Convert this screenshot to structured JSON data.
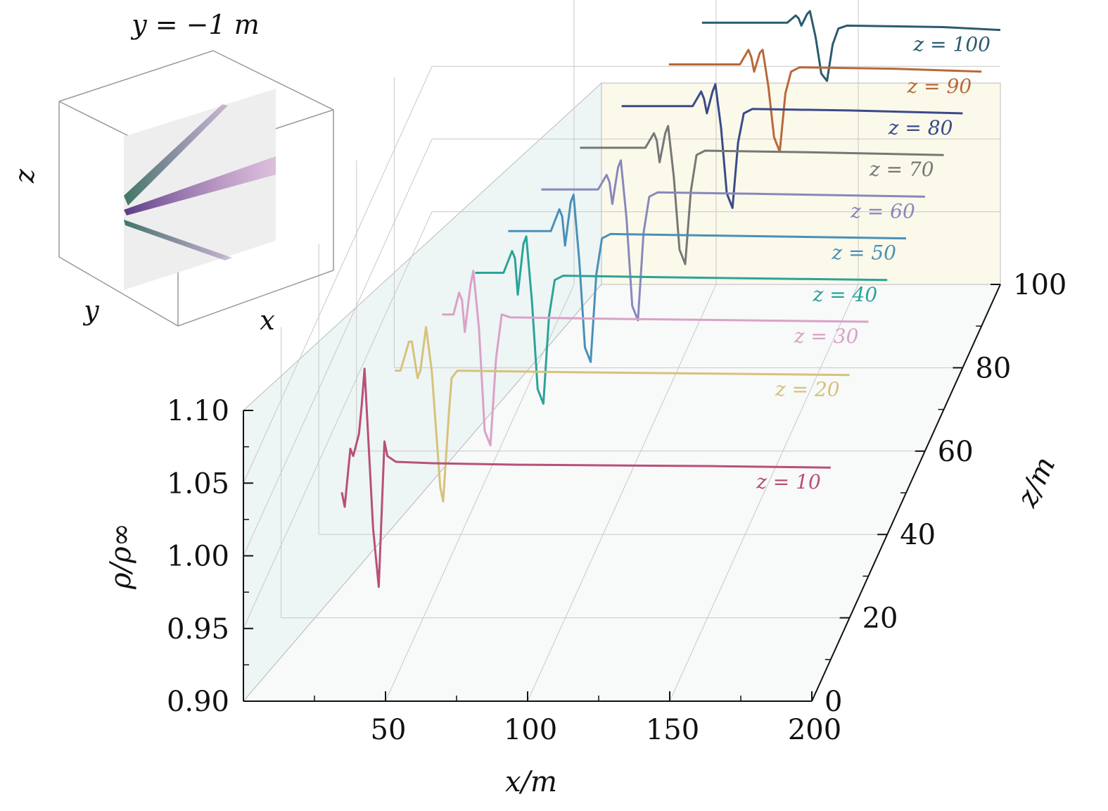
{
  "chart_data": {
    "type": "line",
    "xlabel": "x/m",
    "ylabel": "ρ/ρ∞",
    "zlabel": "z/m",
    "xlim": [
      0,
      200
    ],
    "ylim": [
      0.9,
      1.1
    ],
    "zlim": [
      0,
      100
    ],
    "x_ticks": [
      "50",
      "100",
      "150",
      "200"
    ],
    "y_ticks": [
      "0.90",
      "0.95",
      "1.00",
      "1.05",
      "1.10"
    ],
    "z_ticks": [
      "0",
      "20",
      "40",
      "60",
      "80",
      "100"
    ],
    "series": [
      {
        "name": "z = 10",
        "z": 10,
        "color": "#b8507a",
        "points": [
          [
            28,
            1.015
          ],
          [
            29,
            1.005
          ],
          [
            31,
            1.045
          ],
          [
            32,
            1.04
          ],
          [
            34,
            1.055
          ],
          [
            35,
            1.075
          ],
          [
            36,
            1.1
          ],
          [
            39,
            0.99
          ],
          [
            41,
            0.95
          ],
          [
            43,
            1.05
          ],
          [
            44,
            1.04
          ],
          [
            47,
            1.036
          ],
          [
            60,
            1.035
          ],
          [
            90,
            1.034
          ],
          [
            160,
            1.033
          ],
          [
            200,
            1.032
          ]
        ]
      },
      {
        "name": "z = 20",
        "z": 20,
        "color": "#d6c27a",
        "points": [
          [
            40,
            1.07
          ],
          [
            42,
            1.07
          ],
          [
            45,
            1.09
          ],
          [
            46,
            1.09
          ],
          [
            48,
            1.065
          ],
          [
            49,
            1.07
          ],
          [
            51,
            1.1
          ],
          [
            53,
            1.07
          ],
          [
            56,
            0.99
          ],
          [
            57,
            0.98
          ],
          [
            59,
            1.04
          ],
          [
            60,
            1.065
          ],
          [
            62,
            1.07
          ],
          [
            100,
            1.069
          ],
          [
            200,
            1.067
          ]
        ]
      },
      {
        "name": "z = 30",
        "z": 30,
        "color": "#d9a2c6",
        "points": [
          [
            50,
            1.08
          ],
          [
            54,
            1.08
          ],
          [
            56,
            1.095
          ],
          [
            57,
            1.09
          ],
          [
            58,
            1.068
          ],
          [
            60,
            1.1
          ],
          [
            61,
            1.11
          ],
          [
            63,
            1.07
          ],
          [
            65,
            1.0
          ],
          [
            67,
            0.99
          ],
          [
            69,
            1.05
          ],
          [
            71,
            1.08
          ],
          [
            74,
            1.078
          ],
          [
            110,
            1.077
          ],
          [
            200,
            1.075
          ]
        ]
      },
      {
        "name": "z = 40",
        "z": 40,
        "color": "#2ba39a",
        "points": [
          [
            55,
            1.08
          ],
          [
            65,
            1.08
          ],
          [
            68,
            1.095
          ],
          [
            69,
            1.09
          ],
          [
            70,
            1.065
          ],
          [
            72,
            1.1
          ],
          [
            73,
            1.105
          ],
          [
            75,
            1.06
          ],
          [
            77,
            1.0
          ],
          [
            79,
            0.99
          ],
          [
            81,
            1.05
          ],
          [
            83,
            1.075
          ],
          [
            86,
            1.078
          ],
          [
            120,
            1.077
          ],
          [
            200,
            1.075
          ]
        ]
      },
      {
        "name": "z = 50",
        "z": 50,
        "color": "#4a90b8",
        "points": [
          [
            60,
            1.08
          ],
          [
            75,
            1.08
          ],
          [
            78,
            1.095
          ],
          [
            79,
            1.09
          ],
          [
            80,
            1.07
          ],
          [
            82,
            1.1
          ],
          [
            83,
            1.105
          ],
          [
            85,
            1.06
          ],
          [
            87,
            1.0
          ],
          [
            89,
            0.99
          ],
          [
            91,
            1.05
          ],
          [
            93,
            1.075
          ],
          [
            96,
            1.078
          ],
          [
            130,
            1.077
          ],
          [
            200,
            1.075
          ]
        ]
      },
      {
        "name": "z = 60",
        "z": 60,
        "color": "#8888bb",
        "points": [
          [
            65,
            1.08
          ],
          [
            85,
            1.08
          ],
          [
            88,
            1.09
          ],
          [
            89,
            1.085
          ],
          [
            90,
            1.07
          ],
          [
            92,
            1.095
          ],
          [
            93,
            1.1
          ],
          [
            95,
            1.06
          ],
          [
            97,
            1.0
          ],
          [
            99,
            0.99
          ],
          [
            101,
            1.05
          ],
          [
            103,
            1.075
          ],
          [
            106,
            1.078
          ],
          [
            140,
            1.077
          ],
          [
            200,
            1.075
          ]
        ]
      },
      {
        "name": "z = 70",
        "z": 70,
        "color": "#777777",
        "points": [
          [
            72,
            1.08
          ],
          [
            95,
            1.08
          ],
          [
            98,
            1.09
          ],
          [
            99,
            1.085
          ],
          [
            100,
            1.07
          ],
          [
            102,
            1.09
          ],
          [
            103,
            1.095
          ],
          [
            105,
            1.06
          ],
          [
            107,
            1.01
          ],
          [
            109,
            1.0
          ],
          [
            111,
            1.05
          ],
          [
            113,
            1.075
          ],
          [
            116,
            1.078
          ],
          [
            150,
            1.077
          ],
          [
            200,
            1.075
          ]
        ]
      },
      {
        "name": "z = 80",
        "z": 80,
        "color": "#3a4a8a",
        "points": [
          [
            80,
            1.08
          ],
          [
            105,
            1.08
          ],
          [
            108,
            1.09
          ],
          [
            109,
            1.085
          ],
          [
            110,
            1.075
          ],
          [
            112,
            1.09
          ],
          [
            113,
            1.095
          ],
          [
            115,
            1.065
          ],
          [
            117,
            1.02
          ],
          [
            119,
            1.01
          ],
          [
            121,
            1.055
          ],
          [
            123,
            1.075
          ],
          [
            126,
            1.078
          ],
          [
            160,
            1.077
          ],
          [
            200,
            1.075
          ]
        ]
      },
      {
        "name": "z = 90",
        "z": 90,
        "color": "#b8693a",
        "points": [
          [
            90,
            1.08
          ],
          [
            115,
            1.08
          ],
          [
            118,
            1.09
          ],
          [
            119,
            1.085
          ],
          [
            120,
            1.075
          ],
          [
            122,
            1.088
          ],
          [
            123,
            1.09
          ],
          [
            125,
            1.065
          ],
          [
            127,
            1.03
          ],
          [
            129,
            1.02
          ],
          [
            131,
            1.06
          ],
          [
            133,
            1.075
          ],
          [
            136,
            1.078
          ],
          [
            170,
            1.077
          ],
          [
            200,
            1.075
          ]
        ]
      },
      {
        "name": "z = 100",
        "z": 100,
        "color": "#2a5b6e",
        "points": [
          [
            95,
            1.08
          ],
          [
            125,
            1.08
          ],
          [
            128,
            1.085
          ],
          [
            129,
            1.083
          ],
          [
            130,
            1.078
          ],
          [
            132,
            1.086
          ],
          [
            133,
            1.088
          ],
          [
            135,
            1.07
          ],
          [
            137,
            1.045
          ],
          [
            139,
            1.04
          ],
          [
            141,
            1.065
          ],
          [
            143,
            1.076
          ],
          [
            146,
            1.078
          ],
          [
            180,
            1.077
          ],
          [
            200,
            1.075
          ]
        ]
      }
    ],
    "inset": {
      "title": "y = −1 m",
      "axis_labels": [
        "z",
        "y",
        "x"
      ]
    }
  }
}
